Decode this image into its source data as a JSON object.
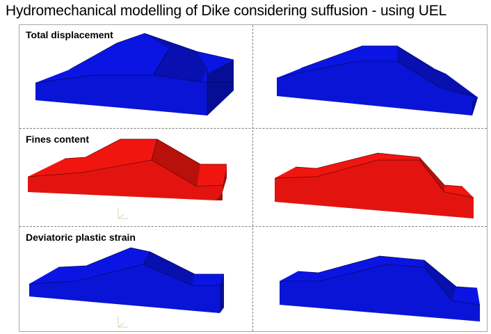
{
  "title": "Hydromechanical modelling of Dike considering suffusion - using UEL",
  "rows": [
    {
      "label": "Total displacement",
      "color": "#0a14d6"
    },
    {
      "label": "Fines content",
      "color": "#e3140f"
    },
    {
      "label": "Deviatoric plastic strain",
      "color": "#0a14d6"
    }
  ],
  "colors": {
    "border": "#a6a6a6",
    "divider": "#7f7f7f",
    "triad": "#d8d4b0"
  },
  "icons": [
    "dike-model-icon",
    "axis-triad-icon"
  ]
}
